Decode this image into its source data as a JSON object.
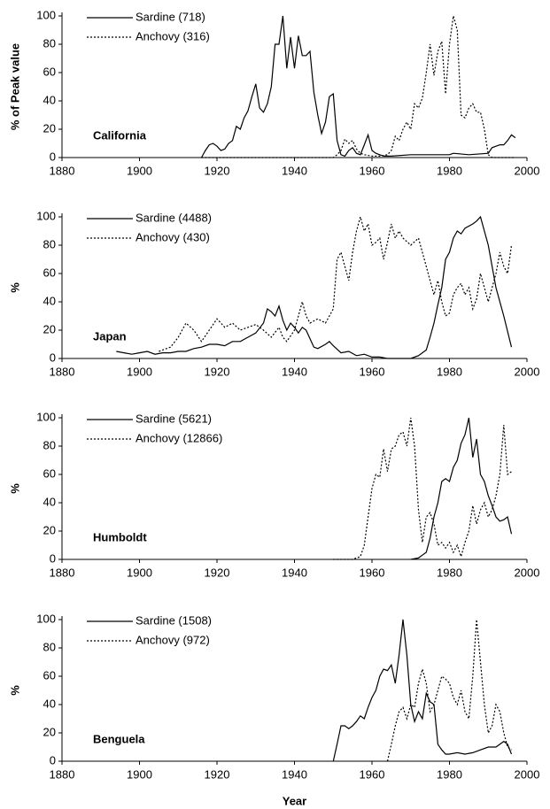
{
  "chart_data": [
    {
      "type": "line",
      "region": "California",
      "ylabel": "% of Peak value",
      "xlim": [
        1880,
        2000
      ],
      "xticks": [
        1880,
        1900,
        1920,
        1940,
        1960,
        1980,
        2000
      ],
      "ylim": [
        0,
        100
      ],
      "yticks": [
        0,
        20,
        40,
        60,
        80,
        100
      ],
      "grid": false,
      "series": [
        {
          "name": "Sardine (718)",
          "color": "#000000",
          "style": "solid",
          "x": [
            1916,
            1917,
            1918,
            1919,
            1920,
            1921,
            1922,
            1923,
            1924,
            1925,
            1926,
            1927,
            1928,
            1929,
            1930,
            1931,
            1932,
            1933,
            1934,
            1935,
            1936,
            1937,
            1938,
            1939,
            1940,
            1941,
            1942,
            1943,
            1944,
            1945,
            1946,
            1947,
            1948,
            1949,
            1950,
            1951,
            1952,
            1953,
            1954,
            1955,
            1956,
            1957,
            1958,
            1959,
            1960,
            1961,
            1962,
            1963,
            1965,
            1970,
            1975,
            1980,
            1981,
            1985,
            1990,
            1991,
            1992,
            1993,
            1994,
            1995,
            1996,
            1997
          ],
          "values": [
            0,
            5,
            9,
            10,
            8,
            5,
            6,
            10,
            12,
            22,
            20,
            28,
            33,
            43,
            52,
            35,
            32,
            38,
            50,
            80,
            80,
            100,
            63,
            85,
            63,
            86,
            72,
            72,
            75,
            46,
            30,
            17,
            25,
            43,
            45,
            12,
            2,
            1,
            5,
            7,
            3,
            2,
            9,
            16,
            5,
            3,
            2,
            1,
            1,
            2,
            2,
            2,
            3,
            2,
            3,
            7,
            8,
            9,
            9,
            12,
            16,
            14
          ]
        },
        {
          "name": "Anchovy (316)",
          "color": "#000000",
          "style": "dotted",
          "x": [
            1916,
            1930,
            1950,
            1951,
            1952,
            1953,
            1954,
            1955,
            1956,
            1957,
            1958,
            1960,
            1962,
            1964,
            1965,
            1966,
            1967,
            1968,
            1969,
            1970,
            1971,
            1972,
            1973,
            1974,
            1975,
            1976,
            1977,
            1978,
            1979,
            1980,
            1981,
            1982,
            1983,
            1984,
            1985,
            1986,
            1987,
            1988,
            1989,
            1990,
            1991,
            1995,
            1997
          ],
          "values": [
            0,
            0,
            0,
            2,
            5,
            13,
            10,
            12,
            6,
            3,
            2,
            1,
            1,
            2,
            5,
            15,
            12,
            20,
            25,
            20,
            38,
            35,
            42,
            60,
            80,
            58,
            75,
            82,
            45,
            80,
            100,
            90,
            30,
            28,
            35,
            38,
            32,
            32,
            20,
            2,
            0,
            0,
            0
          ]
        }
      ]
    },
    {
      "type": "line",
      "region": "Japan",
      "ylabel": "%",
      "xlim": [
        1880,
        2000
      ],
      "xticks": [
        1880,
        1900,
        1920,
        1940,
        1960,
        1980,
        2000
      ],
      "ylim": [
        0,
        100
      ],
      "yticks": [
        0,
        20,
        40,
        60,
        80,
        100
      ],
      "grid": false,
      "series": [
        {
          "name": "Sardine (4488)",
          "color": "#000000",
          "style": "solid",
          "x": [
            1894,
            1896,
            1898,
            1900,
            1902,
            1904,
            1906,
            1908,
            1910,
            1912,
            1914,
            1916,
            1918,
            1920,
            1922,
            1924,
            1926,
            1928,
            1930,
            1932,
            1933,
            1934,
            1935,
            1936,
            1937,
            1938,
            1939,
            1940,
            1941,
            1942,
            1943,
            1944,
            1945,
            1946,
            1948,
            1949,
            1950,
            1952,
            1954,
            1956,
            1958,
            1960,
            1962,
            1964,
            1970,
            1972,
            1974,
            1975,
            1976,
            1977,
            1978,
            1979,
            1980,
            1981,
            1982,
            1983,
            1984,
            1986,
            1987,
            1988,
            1990,
            1992,
            1994,
            1996
          ],
          "values": [
            5,
            4,
            3,
            4,
            5,
            3,
            4,
            4,
            5,
            5,
            7,
            8,
            10,
            10,
            9,
            12,
            12,
            15,
            18,
            25,
            35,
            33,
            30,
            37,
            27,
            20,
            25,
            22,
            18,
            22,
            20,
            14,
            8,
            7,
            10,
            12,
            9,
            4,
            5,
            2,
            3,
            1,
            1,
            0,
            0,
            2,
            6,
            15,
            25,
            38,
            50,
            70,
            75,
            85,
            90,
            88,
            92,
            95,
            97,
            100,
            80,
            50,
            30,
            8
          ]
        },
        {
          "name": "Anchovy (430)",
          "color": "#000000",
          "style": "dotted",
          "x": [
            1905,
            1908,
            1910,
            1912,
            1914,
            1916,
            1918,
            1920,
            1922,
            1924,
            1926,
            1928,
            1930,
            1932,
            1934,
            1936,
            1937,
            1938,
            1940,
            1942,
            1943,
            1944,
            1946,
            1948,
            1950,
            1951,
            1952,
            1953,
            1954,
            1955,
            1956,
            1957,
            1958,
            1959,
            1960,
            1961,
            1962,
            1963,
            1964,
            1965,
            1966,
            1967,
            1968,
            1970,
            1972,
            1974,
            1975,
            1976,
            1977,
            1978,
            1979,
            1980,
            1981,
            1982,
            1983,
            1984,
            1985,
            1986,
            1987,
            1988,
            1990,
            1992,
            1993,
            1994,
            1995,
            1996
          ],
          "values": [
            5,
            8,
            15,
            25,
            20,
            12,
            20,
            28,
            22,
            25,
            20,
            22,
            24,
            20,
            15,
            22,
            15,
            12,
            20,
            40,
            30,
            25,
            28,
            25,
            35,
            70,
            75,
            65,
            55,
            75,
            90,
            100,
            90,
            95,
            80,
            82,
            85,
            70,
            82,
            95,
            85,
            90,
            85,
            80,
            85,
            65,
            55,
            45,
            55,
            40,
            30,
            32,
            45,
            50,
            53,
            45,
            50,
            35,
            42,
            60,
            40,
            60,
            75,
            65,
            60,
            80
          ]
        }
      ]
    },
    {
      "type": "line",
      "region": "Humboldt",
      "ylabel": "%",
      "xlim": [
        1880,
        2000
      ],
      "xticks": [
        1880,
        1900,
        1920,
        1940,
        1960,
        1980,
        2000
      ],
      "ylim": [
        0,
        100
      ],
      "yticks": [
        0,
        20,
        40,
        60,
        80,
        100
      ],
      "grid": false,
      "series": [
        {
          "name": "Sardine (5621)",
          "color": "#000000",
          "style": "solid",
          "x": [
            1970,
            1972,
            1973,
            1974,
            1975,
            1976,
            1977,
            1978,
            1979,
            1980,
            1981,
            1982,
            1983,
            1984,
            1985,
            1986,
            1987,
            1988,
            1989,
            1990,
            1991,
            1992,
            1993,
            1994,
            1995,
            1996
          ],
          "values": [
            0,
            1,
            3,
            5,
            15,
            30,
            40,
            55,
            57,
            55,
            65,
            70,
            82,
            88,
            100,
            72,
            85,
            60,
            55,
            45,
            38,
            30,
            27,
            28,
            30,
            18
          ]
        },
        {
          "name": "Anchovy (12866)",
          "color": "#000000",
          "style": "dotted",
          "x": [
            1950,
            1955,
            1957,
            1958,
            1959,
            1960,
            1961,
            1962,
            1963,
            1964,
            1965,
            1966,
            1967,
            1968,
            1969,
            1970,
            1971,
            1972,
            1973,
            1974,
            1975,
            1976,
            1977,
            1978,
            1979,
            1980,
            1981,
            1982,
            1983,
            1984,
            1985,
            1986,
            1987,
            1988,
            1989,
            1990,
            1991,
            1992,
            1993,
            1994,
            1995,
            1996
          ],
          "values": [
            0,
            0,
            2,
            10,
            30,
            50,
            60,
            58,
            78,
            62,
            78,
            80,
            88,
            90,
            80,
            100,
            80,
            35,
            12,
            30,
            33,
            25,
            10,
            12,
            8,
            12,
            5,
            10,
            2,
            12,
            20,
            38,
            25,
            35,
            40,
            30,
            35,
            45,
            60,
            95,
            60,
            62
          ]
        }
      ]
    },
    {
      "type": "line",
      "region": "Benguela",
      "ylabel": "%",
      "xlabel": "Year",
      "xlim": [
        1880,
        2000
      ],
      "xticks": [
        1880,
        1900,
        1920,
        1940,
        1960,
        1980,
        2000
      ],
      "ylim": [
        0,
        100
      ],
      "yticks": [
        0,
        20,
        40,
        60,
        80,
        100
      ],
      "grid": false,
      "series": [
        {
          "name": "Sardine (1508)",
          "color": "#000000",
          "style": "solid",
          "x": [
            1950,
            1951,
            1952,
            1953,
            1954,
            1955,
            1956,
            1957,
            1958,
            1959,
            1960,
            1961,
            1962,
            1963,
            1964,
            1965,
            1966,
            1967,
            1968,
            1969,
            1970,
            1971,
            1972,
            1973,
            1974,
            1975,
            1976,
            1977,
            1978,
            1979,
            1980,
            1982,
            1984,
            1986,
            1988,
            1990,
            1992,
            1994,
            1995,
            1996
          ],
          "values": [
            0,
            12,
            25,
            25,
            23,
            25,
            28,
            32,
            30,
            38,
            45,
            50,
            60,
            65,
            64,
            68,
            55,
            75,
            100,
            75,
            40,
            28,
            35,
            30,
            48,
            42,
            40,
            12,
            8,
            5,
            5,
            6,
            5,
            6,
            8,
            10,
            10,
            14,
            12,
            5
          ]
        },
        {
          "name": "Anchovy (972)",
          "color": "#000000",
          "style": "dotted",
          "x": [
            1964,
            1965,
            1966,
            1967,
            1968,
            1969,
            1970,
            1971,
            1972,
            1973,
            1974,
            1975,
            1976,
            1977,
            1978,
            1979,
            1980,
            1981,
            1982,
            1983,
            1984,
            1985,
            1986,
            1987,
            1988,
            1989,
            1990,
            1991,
            1992,
            1993,
            1994,
            1995,
            1996
          ],
          "values": [
            0,
            12,
            25,
            35,
            38,
            30,
            40,
            38,
            55,
            65,
            55,
            35,
            40,
            50,
            60,
            58,
            55,
            45,
            40,
            50,
            35,
            30,
            60,
            100,
            70,
            40,
            20,
            25,
            40,
            35,
            20,
            10,
            8
          ]
        }
      ]
    }
  ]
}
